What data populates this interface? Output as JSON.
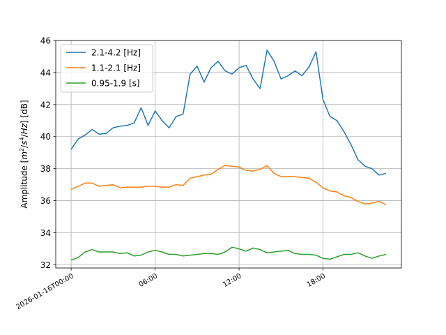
{
  "chart_data": {
    "type": "line",
    "title": "",
    "xlabel": "",
    "ylabel_parts": [
      "Amplitude [",
      "m",
      "2",
      "/",
      "s",
      "4",
      "/",
      "Hz",
      "] [dB]"
    ],
    "x_unit": "hours",
    "xlim": [
      -1.1,
      23.6
    ],
    "ylim": [
      31.8,
      46.0
    ],
    "grid": true,
    "legend_position": "upper-left",
    "x_ticks": [
      {
        "value": 0,
        "label": "2026-01-16T00:00"
      },
      {
        "value": 6,
        "label": "06:00"
      },
      {
        "value": 12,
        "label": "12:00"
      },
      {
        "value": 18,
        "label": "18:00"
      }
    ],
    "y_ticks": [
      32,
      34,
      36,
      38,
      40,
      42,
      44,
      46
    ],
    "x": [
      0,
      0.5,
      1,
      1.5,
      2,
      2.5,
      3,
      3.5,
      4,
      4.5,
      5,
      5.5,
      6,
      6.5,
      7,
      7.5,
      8,
      8.5,
      9,
      9.5,
      10,
      10.5,
      11,
      11.5,
      12,
      12.5,
      13,
      13.5,
      14,
      14.5,
      15,
      15.5,
      16,
      16.5,
      17,
      17.5,
      18,
      18.5,
      19,
      19.5,
      20,
      20.5,
      21,
      21.5,
      22,
      22.5
    ],
    "series": [
      {
        "name": "2.1-4.2 [Hz]",
        "color": "#1f77b4",
        "values": [
          39.2,
          39.85,
          40.1,
          40.45,
          40.15,
          40.2,
          40.55,
          40.65,
          40.7,
          40.85,
          41.8,
          40.7,
          41.6,
          41.0,
          40.55,
          41.25,
          41.4,
          43.9,
          44.4,
          43.4,
          44.3,
          44.7,
          44.1,
          43.9,
          44.3,
          44.45,
          43.6,
          43.0,
          45.4,
          44.7,
          43.6,
          43.8,
          44.1,
          43.8,
          44.35,
          45.3,
          42.3,
          41.25,
          41.0,
          40.3,
          39.5,
          38.55,
          38.15,
          38.0,
          37.6,
          37.7
        ]
      },
      {
        "name": "1.1-2.1 [Hz]",
        "color": "#ff7f0e",
        "values": [
          36.7,
          36.9,
          37.1,
          37.1,
          36.9,
          36.95,
          37.0,
          36.8,
          36.85,
          36.85,
          36.85,
          36.9,
          36.9,
          36.85,
          36.85,
          37.0,
          36.95,
          37.4,
          37.5,
          37.6,
          37.65,
          37.95,
          38.2,
          38.15,
          38.1,
          37.9,
          37.85,
          37.95,
          38.2,
          37.7,
          37.5,
          37.5,
          37.5,
          37.45,
          37.4,
          37.15,
          36.8,
          36.6,
          36.55,
          36.3,
          36.2,
          35.95,
          35.8,
          35.85,
          35.95,
          35.75
        ]
      },
      {
        "name": "0.95-1.9 [s]",
        "color": "#2ca02c",
        "values": [
          32.3,
          32.45,
          32.8,
          32.95,
          32.8,
          32.8,
          32.8,
          32.7,
          32.75,
          32.55,
          32.6,
          32.8,
          32.9,
          32.8,
          32.65,
          32.65,
          32.55,
          32.6,
          32.65,
          32.7,
          32.7,
          32.65,
          32.8,
          33.1,
          33.0,
          32.85,
          33.05,
          32.95,
          32.75,
          32.8,
          32.85,
          32.9,
          32.7,
          32.65,
          32.65,
          32.6,
          32.4,
          32.35,
          32.5,
          32.65,
          32.65,
          32.75,
          32.55,
          32.4,
          32.55,
          32.65
        ]
      }
    ]
  }
}
